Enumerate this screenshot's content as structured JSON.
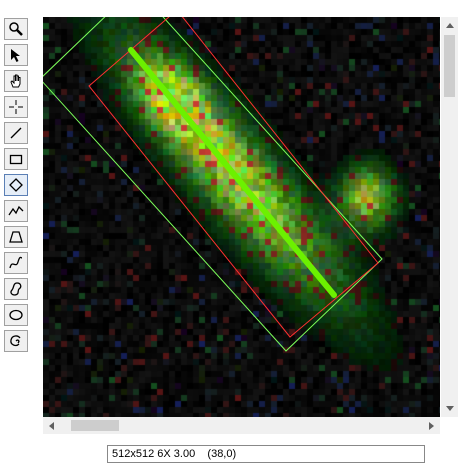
{
  "toolbar": {
    "tools": [
      {
        "name": "zoom-tool",
        "icon": "magnifier-icon",
        "active": false
      },
      {
        "name": "select-tool",
        "icon": "arrow-pointer-icon",
        "active": false
      },
      {
        "name": "pan-tool",
        "icon": "hand-icon",
        "active": false
      },
      {
        "name": "point-tool",
        "icon": "crosshair-icon",
        "active": false
      },
      {
        "name": "line-tool",
        "icon": "line-icon",
        "active": false
      },
      {
        "name": "rectangle-tool",
        "icon": "rectangle-icon",
        "active": false
      },
      {
        "name": "rotated-rectangle-tool",
        "icon": "diamond-icon",
        "active": true
      },
      {
        "name": "segmented-line-tool",
        "icon": "zigzag-line-icon",
        "active": false
      },
      {
        "name": "polygon-tool",
        "icon": "polygon-icon",
        "active": false
      },
      {
        "name": "freehand-line-tool",
        "icon": "freehand-line-icon",
        "active": false
      },
      {
        "name": "freehand-selection-tool",
        "icon": "freehand-shape-icon",
        "active": false
      },
      {
        "name": "oval-tool",
        "icon": "oval-icon",
        "active": false
      },
      {
        "name": "wand-tool",
        "icon": "lasso-icon",
        "active": false
      }
    ]
  },
  "status": {
    "text": "512x512 6X 3.00    (38,0)"
  },
  "colors": {
    "selection_line": "#6cf000",
    "roi_outline_green": "#7cff5a",
    "roi_outline_red": "#ff3030",
    "window_bg": "#ffffff",
    "scrollbar_track": "#f0f0f0",
    "scrollbar_thumb": "#cdcdcd"
  }
}
